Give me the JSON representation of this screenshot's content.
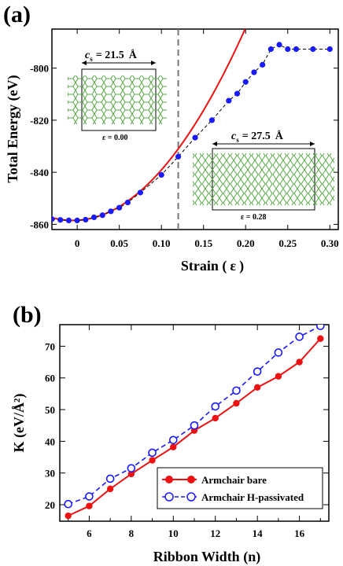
{
  "chart_data": [
    {
      "panel_label": "(a)",
      "type": "line",
      "xlabel_prefix": "Strain (",
      "xlabel_symbol": "ε",
      "xlabel_suffix": ")",
      "ylabel": "Total Energy (eV)",
      "xlim": [
        -0.03,
        0.31
      ],
      "ylim": [
        -862,
        -785
      ],
      "x_ticks": [
        0,
        0.05,
        0.1,
        0.15,
        0.2,
        0.25,
        0.3
      ],
      "x_tick_labels": [
        "0",
        "0.05",
        "0.10",
        "0.15",
        "0.20",
        "0.25",
        "0.30"
      ],
      "y_ticks": [
        -860,
        -840,
        -820,
        -800
      ],
      "y_tick_labels": [
        "-860",
        "-840",
        "-820",
        "-800"
      ],
      "vertical_dashed_line_x": 0.12,
      "series": [
        {
          "style": "black dashed line with blue filled circles",
          "color": "#1a1aff",
          "x": [
            -0.03,
            -0.02,
            -0.01,
            0.0,
            0.01,
            0.02,
            0.03,
            0.04,
            0.05,
            0.06,
            0.075,
            0.1,
            0.12,
            0.14,
            0.16,
            0.18,
            0.19,
            0.2,
            0.21,
            0.22,
            0.23,
            0.24,
            0.25,
            0.26,
            0.28,
            0.3
          ],
          "y": [
            -858.0,
            -858.3,
            -858.5,
            -858.5,
            -858.2,
            -857.3,
            -856.5,
            -855.0,
            -853.6,
            -851.6,
            -847.8,
            -841.0,
            -834.0,
            -826.7,
            -820.0,
            -812.5,
            -809.8,
            -805.3,
            -801.6,
            -798.7,
            -792.7,
            -791.0,
            -792.7,
            -792.7,
            -792.7,
            -792.7
          ]
        },
        {
          "style": "red parabolic fit",
          "color": "#ee1111",
          "fit": {
            "a": 1760,
            "x0": -0.005,
            "y0": -858.5
          }
        }
      ],
      "insets": [
        {
          "label": "c",
          "subscript": "s",
          "value": "= 21.5",
          "unit": "Å",
          "strain": "ε = 0.00"
        },
        {
          "label": "c",
          "subscript": "s",
          "value": "= 27.5",
          "unit": "Å",
          "strain": "ε = 0.28"
        }
      ]
    },
    {
      "panel_label": "(b)",
      "type": "line",
      "xlabel": "Ribbon Width (n)",
      "ylabel": "K (eV/Å²)",
      "xlim": [
        4.6,
        17.4
      ],
      "ylim": [
        14.8,
        76.8
      ],
      "x_ticks": [
        6,
        8,
        10,
        12,
        14,
        16
      ],
      "x_tick_labels": [
        "6",
        "8",
        "10",
        "12",
        "14",
        "16"
      ],
      "y_ticks": [
        20,
        30,
        40,
        50,
        60,
        70
      ],
      "y_tick_labels": [
        "20",
        "30",
        "40",
        "50",
        "60",
        "70"
      ],
      "categories": [
        5,
        6,
        7,
        8,
        9,
        10,
        11,
        12,
        13,
        14,
        15,
        16,
        17
      ],
      "series": [
        {
          "name": "Armchair bare",
          "color": "#ee1111",
          "style": "solid line, filled circles",
          "values": [
            16.5,
            19.6,
            25.0,
            29.7,
            34.0,
            38.2,
            43.4,
            47.3,
            52.0,
            57.0,
            60.5,
            65.0,
            72.4
          ]
        },
        {
          "name": "Armchair H-passivated",
          "color": "#1a1aff",
          "style": "dashed line, open circles",
          "values": [
            20.2,
            22.6,
            28.2,
            31.5,
            36.4,
            40.4,
            45.0,
            51.0,
            56.0,
            62.0,
            68.0,
            73.0,
            76.4
          ]
        }
      ],
      "legend_position": "lower-right"
    }
  ]
}
